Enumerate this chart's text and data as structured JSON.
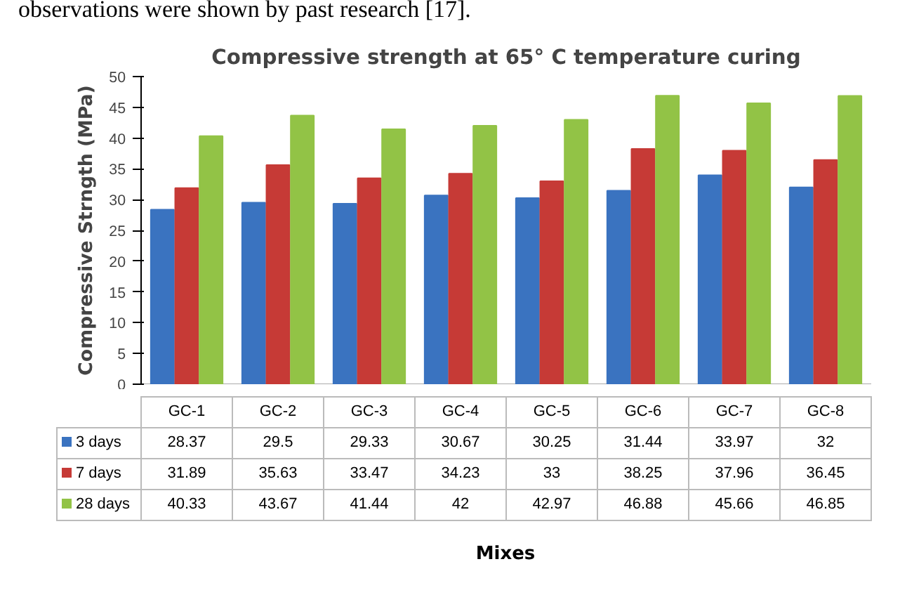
{
  "chart_data": {
    "type": "bar",
    "title": "Compressive strength at 65° C temperature curing",
    "ylabel": "Compressive Strngth (MPa)",
    "annotations": [
      "observations were shown by past research [17].",
      "Mixes"
    ],
    "categories": [
      "GC-1",
      "GC-2",
      "GC-3",
      "GC-4",
      "GC-5",
      "GC-6",
      "GC-7",
      "GC-8"
    ],
    "series": [
      {
        "name": "3 days",
        "color": "#3a73c0",
        "values": [
          28.37,
          29.5,
          29.33,
          30.67,
          30.25,
          31.44,
          33.97,
          32
        ]
      },
      {
        "name": "7 days",
        "color": "#c63a36",
        "values": [
          31.89,
          35.63,
          33.47,
          34.23,
          33,
          38.25,
          37.96,
          36.45
        ]
      },
      {
        "name": "28 days",
        "color": "#92c346",
        "values": [
          40.33,
          43.67,
          41.44,
          42,
          42.97,
          46.88,
          45.66,
          46.85
        ]
      }
    ],
    "ylim": [
      0,
      50
    ],
    "yticks": [
      0,
      5,
      10,
      15,
      20,
      25,
      30,
      35,
      40,
      45,
      50
    ],
    "grid": false,
    "legend": "bottom",
    "data_labels": true
  }
}
